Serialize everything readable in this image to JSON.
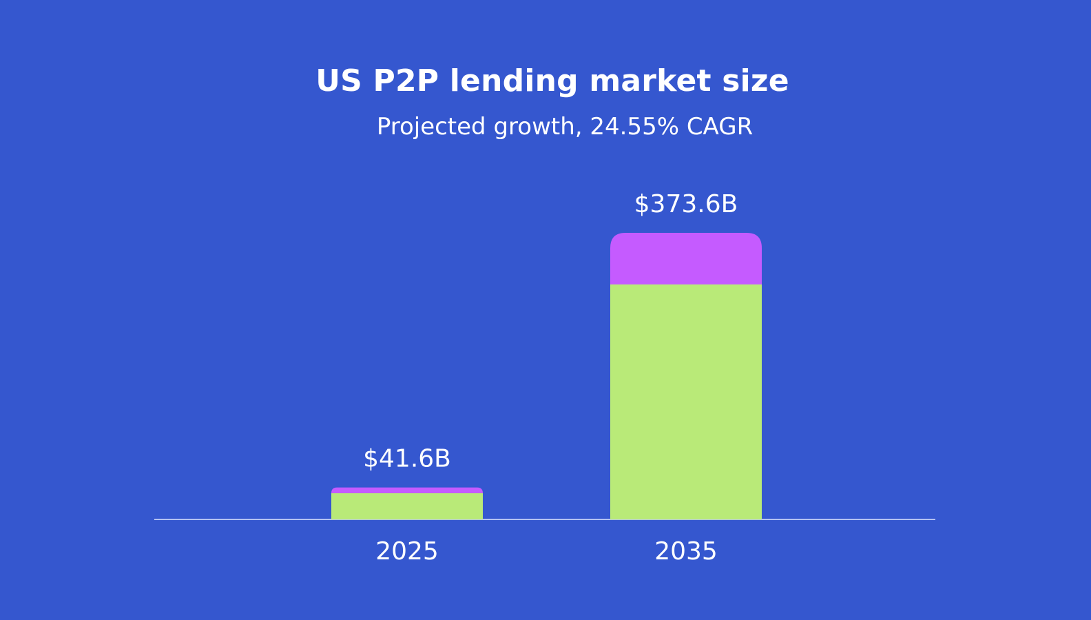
{
  "chart_data": {
    "type": "bar",
    "title": "US P2P lending market size",
    "subtitle": "Projected growth, 24.55% CAGR",
    "categories": [
      "2025",
      "2035"
    ],
    "values": [
      41.6,
      373.6
    ],
    "value_labels": [
      "$41.6B",
      "$373.6B"
    ],
    "unit": "billion USD",
    "xlabel": "",
    "ylabel": "",
    "ylim": [
      0,
      373.6
    ],
    "grid": false,
    "legend": "none"
  },
  "colors": {
    "background": "#3557cf",
    "bar_fill": "#b9ea78",
    "bar_cap": "#c55bff",
    "axis": "#dfe6ff",
    "text": "#ffffff"
  }
}
